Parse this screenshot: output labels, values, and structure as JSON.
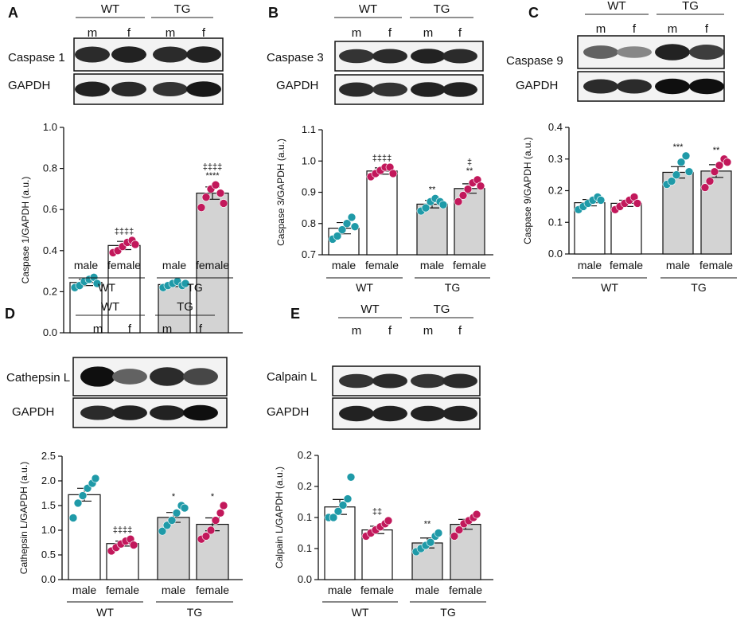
{
  "colors": {
    "male": "#1f9aa8",
    "female": "#c2185b",
    "wt_bar": "#ffffff",
    "tg_bar": "#d3d3d3"
  },
  "panels": [
    {
      "letter": "A",
      "blot": {
        "groups": [
          "WT",
          "TG"
        ],
        "lanes": [
          "m",
          "f",
          "m",
          "f"
        ],
        "rows": [
          "Caspase 1",
          "GAPDH"
        ]
      },
      "chart_data": {
        "type": "bar",
        "ylabel": "Caspase 1/GAPDH (a.u.)",
        "ylim": [
          0,
          1.0
        ],
        "yticks": [
          "0.0",
          "0.2",
          "0.4",
          "0.6",
          "0.8",
          "1.0"
        ],
        "categories": [
          "male",
          "female",
          "male",
          "female"
        ],
        "groups": [
          "WT",
          "TG"
        ],
        "means": [
          0.245,
          0.425,
          0.235,
          0.68
        ],
        "sem": [
          0.015,
          0.02,
          0.01,
          0.03
        ],
        "points": [
          [
            0.22,
            0.23,
            0.25,
            0.26,
            0.27,
            0.24
          ],
          [
            0.39,
            0.4,
            0.42,
            0.44,
            0.45,
            0.43
          ],
          [
            0.22,
            0.23,
            0.24,
            0.25,
            0.23,
            0.24
          ],
          [
            0.61,
            0.66,
            0.7,
            0.72,
            0.68,
            0.63
          ]
        ],
        "annotations": [
          "",
          "‡‡‡‡",
          "",
          "‡‡‡‡|****"
        ]
      }
    },
    {
      "letter": "B",
      "blot": {
        "groups": [
          "WT",
          "TG"
        ],
        "lanes": [
          "m",
          "f",
          "m",
          "f"
        ],
        "rows": [
          "Caspase 3",
          "GAPDH"
        ]
      },
      "chart_data": {
        "type": "bar",
        "ylabel": "Caspase 3/GAPDH (a.u.)",
        "ylim": [
          0.7,
          1.1
        ],
        "yticks": [
          "0.7",
          "0.8",
          "0.9",
          "1.0",
          "1.1"
        ],
        "categories": [
          "male",
          "female",
          "male",
          "female"
        ],
        "groups": [
          "WT",
          "TG"
        ],
        "means": [
          0.785,
          0.968,
          0.862,
          0.912
        ],
        "sem": [
          0.018,
          0.01,
          0.012,
          0.015
        ],
        "points": [
          [
            0.75,
            0.76,
            0.78,
            0.8,
            0.82,
            0.79
          ],
          [
            0.95,
            0.96,
            0.97,
            0.98,
            0.98,
            0.96
          ],
          [
            0.84,
            0.85,
            0.87,
            0.88,
            0.87,
            0.86
          ],
          [
            0.87,
            0.89,
            0.91,
            0.93,
            0.94,
            0.92
          ]
        ],
        "annotations": [
          "",
          "‡‡‡‡",
          "**",
          "‡|**"
        ]
      }
    },
    {
      "letter": "C",
      "blot": {
        "groups": [
          "WT",
          "TG"
        ],
        "lanes": [
          "m",
          "f",
          "m",
          "f"
        ],
        "rows": [
          "Caspase 9",
          "GAPDH"
        ]
      },
      "chart_data": {
        "type": "bar",
        "ylabel": "Caspase 9/GAPDH (a.u.)",
        "ylim": [
          0,
          0.4
        ],
        "yticks": [
          "0.0",
          "0.1",
          "0.2",
          "0.3",
          "0.4"
        ],
        "categories": [
          "male",
          "female",
          "male",
          "female"
        ],
        "groups": [
          "WT",
          "TG"
        ],
        "means": [
          0.162,
          0.16,
          0.258,
          0.262
        ],
        "sem": [
          0.01,
          0.01,
          0.018,
          0.02
        ],
        "points": [
          [
            0.14,
            0.15,
            0.16,
            0.17,
            0.18,
            0.17
          ],
          [
            0.14,
            0.15,
            0.16,
            0.17,
            0.18,
            0.16
          ],
          [
            0.22,
            0.23,
            0.25,
            0.29,
            0.31,
            0.26
          ],
          [
            0.21,
            0.23,
            0.26,
            0.28,
            0.3,
            0.29
          ]
        ],
        "annotations": [
          "",
          "",
          "***",
          "**"
        ]
      }
    },
    {
      "letter": "D",
      "blot": {
        "groups": [
          "WT",
          "TG"
        ],
        "lanes": [
          "m",
          "f",
          "m",
          "f"
        ],
        "rows": [
          "Cathepsin L",
          "GAPDH"
        ]
      },
      "chart_data": {
        "type": "bar",
        "ylabel": "Cathepsin L/GAPDH (a.u.)",
        "ylim": [
          0,
          2.5
        ],
        "yticks": [
          "0.0",
          "0.5",
          "1.0",
          "1.5",
          "2.0",
          "2.5"
        ],
        "categories": [
          "male",
          "female",
          "male",
          "female"
        ],
        "groups": [
          "WT",
          "TG"
        ],
        "means": [
          1.72,
          0.73,
          1.26,
          1.12
        ],
        "sem": [
          0.13,
          0.05,
          0.1,
          0.13
        ],
        "points": [
          [
            1.25,
            1.55,
            1.7,
            1.85,
            1.95,
            2.05
          ],
          [
            0.58,
            0.65,
            0.72,
            0.78,
            0.82,
            0.7
          ],
          [
            0.98,
            1.1,
            1.2,
            1.35,
            1.5,
            1.45
          ],
          [
            0.82,
            0.88,
            1.0,
            1.2,
            1.35,
            1.5
          ]
        ],
        "annotations": [
          "",
          "‡‡‡‡",
          "*",
          "*"
        ]
      }
    },
    {
      "letter": "E",
      "blot": {
        "groups": [
          "WT",
          "TG"
        ],
        "lanes": [
          "m",
          "f",
          "m",
          "f"
        ],
        "rows": [
          "Calpain L",
          "GAPDH"
        ]
      },
      "chart_data": {
        "type": "bar",
        "ylabel": "Calpain L/GAPDH (a.u.)",
        "ylim": [
          0.0,
          0.2
        ],
        "yticks": [
          "0.0",
          "0.1",
          "0.1",
          "0.2",
          "0.2"
        ],
        "categories": [
          "male",
          "female",
          "male",
          "female"
        ],
        "groups": [
          "WT",
          "TG"
        ],
        "means": [
          0.117,
          0.08,
          0.059,
          0.089
        ],
        "sem": [
          0.012,
          0.006,
          0.008,
          0.008
        ],
        "points": [
          [
            0.1,
            0.1,
            0.11,
            0.12,
            0.13,
            0.165
          ],
          [
            0.07,
            0.075,
            0.08,
            0.085,
            0.09,
            0.095
          ],
          [
            0.045,
            0.05,
            0.055,
            0.06,
            0.07,
            0.075
          ],
          [
            0.07,
            0.08,
            0.09,
            0.095,
            0.1,
            0.105
          ]
        ],
        "annotations": [
          "",
          "‡‡",
          "**",
          ""
        ]
      }
    }
  ]
}
